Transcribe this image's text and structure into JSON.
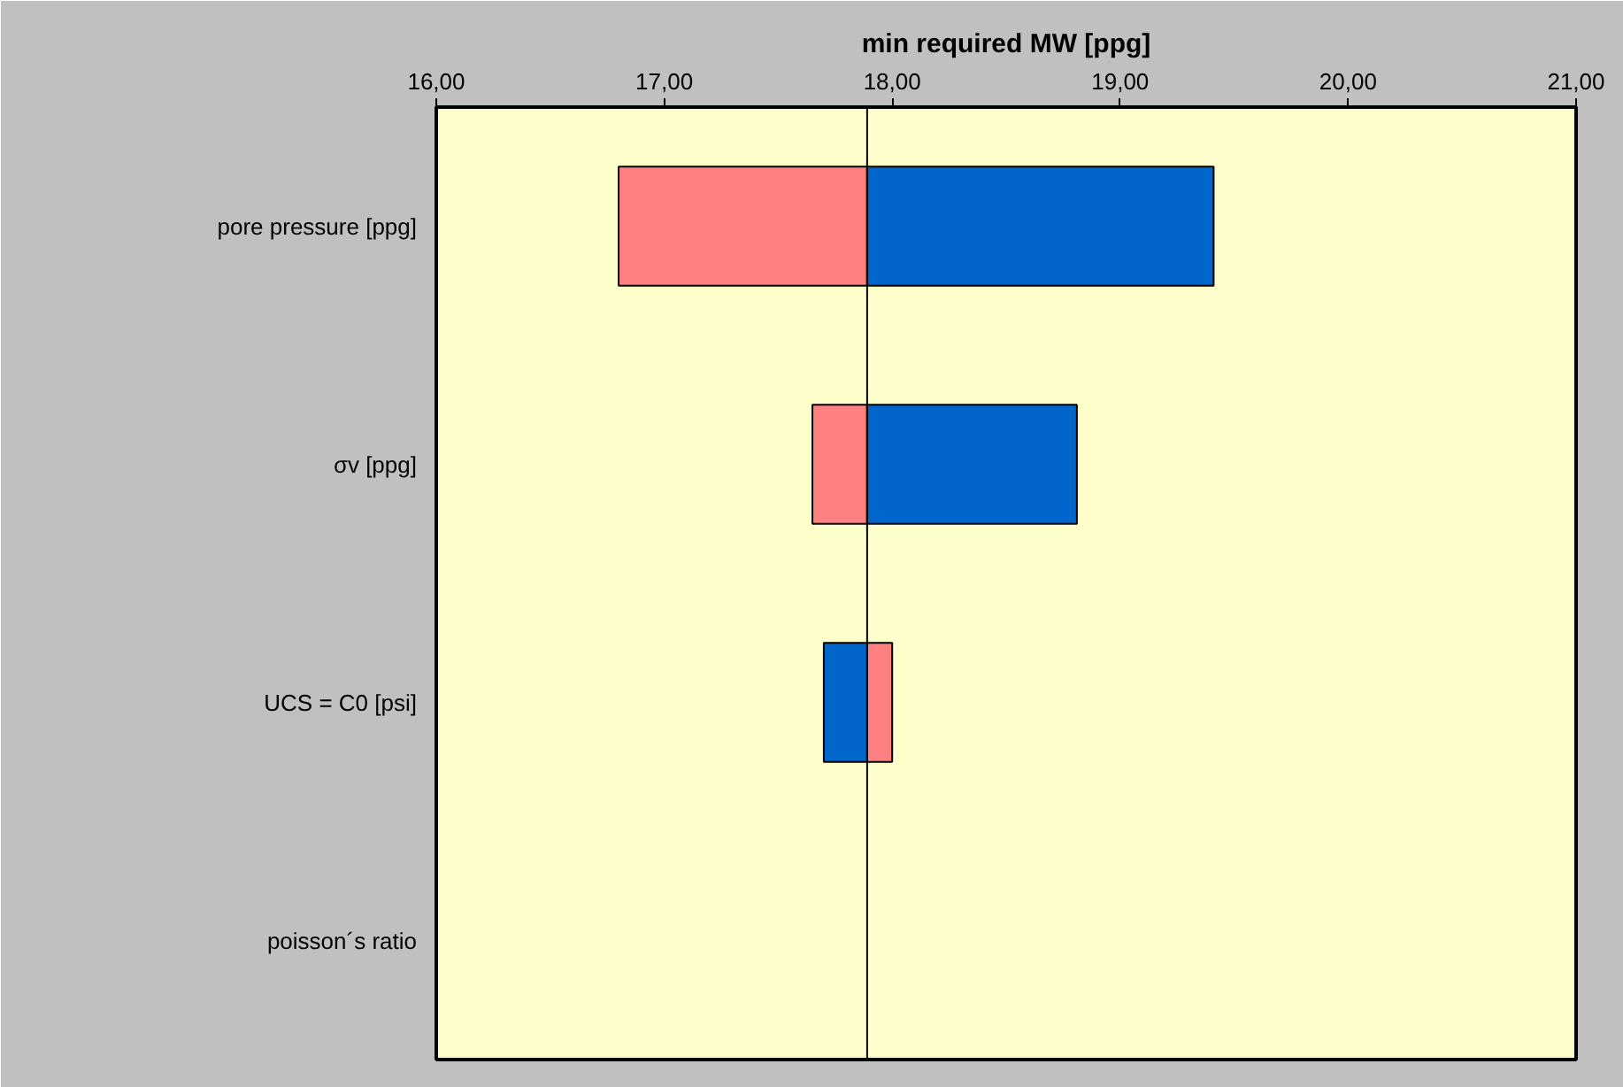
{
  "chart_data": {
    "type": "bar",
    "orientation": "horizontal",
    "title": "min required MW [ppg]",
    "categories": [
      "pore pressure [ppg]",
      "σv [ppg]",
      "UCS = C0 [psi]",
      "poisson´s ratio"
    ],
    "series": [
      {
        "color": "#ff8080",
        "base": [
          17.89,
          17.89,
          17.89,
          null
        ],
        "values": [
          -1.09,
          -0.24,
          0.11,
          null
        ]
      },
      {
        "color": "#0066cc",
        "base": [
          17.89,
          17.89,
          17.89,
          null
        ],
        "values": [
          1.52,
          0.92,
          -0.19,
          null
        ]
      }
    ],
    "xlim": [
      16,
      21
    ],
    "xticks": [
      {
        "value": 16,
        "label": "16,00"
      },
      {
        "value": 17,
        "label": "17,00"
      },
      {
        "value": 18,
        "label": "18,00"
      },
      {
        "value": 19,
        "label": "19,00"
      },
      {
        "value": 20,
        "label": "20,00"
      },
      {
        "value": 21,
        "label": "21,00"
      }
    ],
    "ref_lines": [
      {
        "axis": "x",
        "value": 17.89,
        "label": null,
        "color": "#000000"
      }
    ],
    "grid": false
  }
}
